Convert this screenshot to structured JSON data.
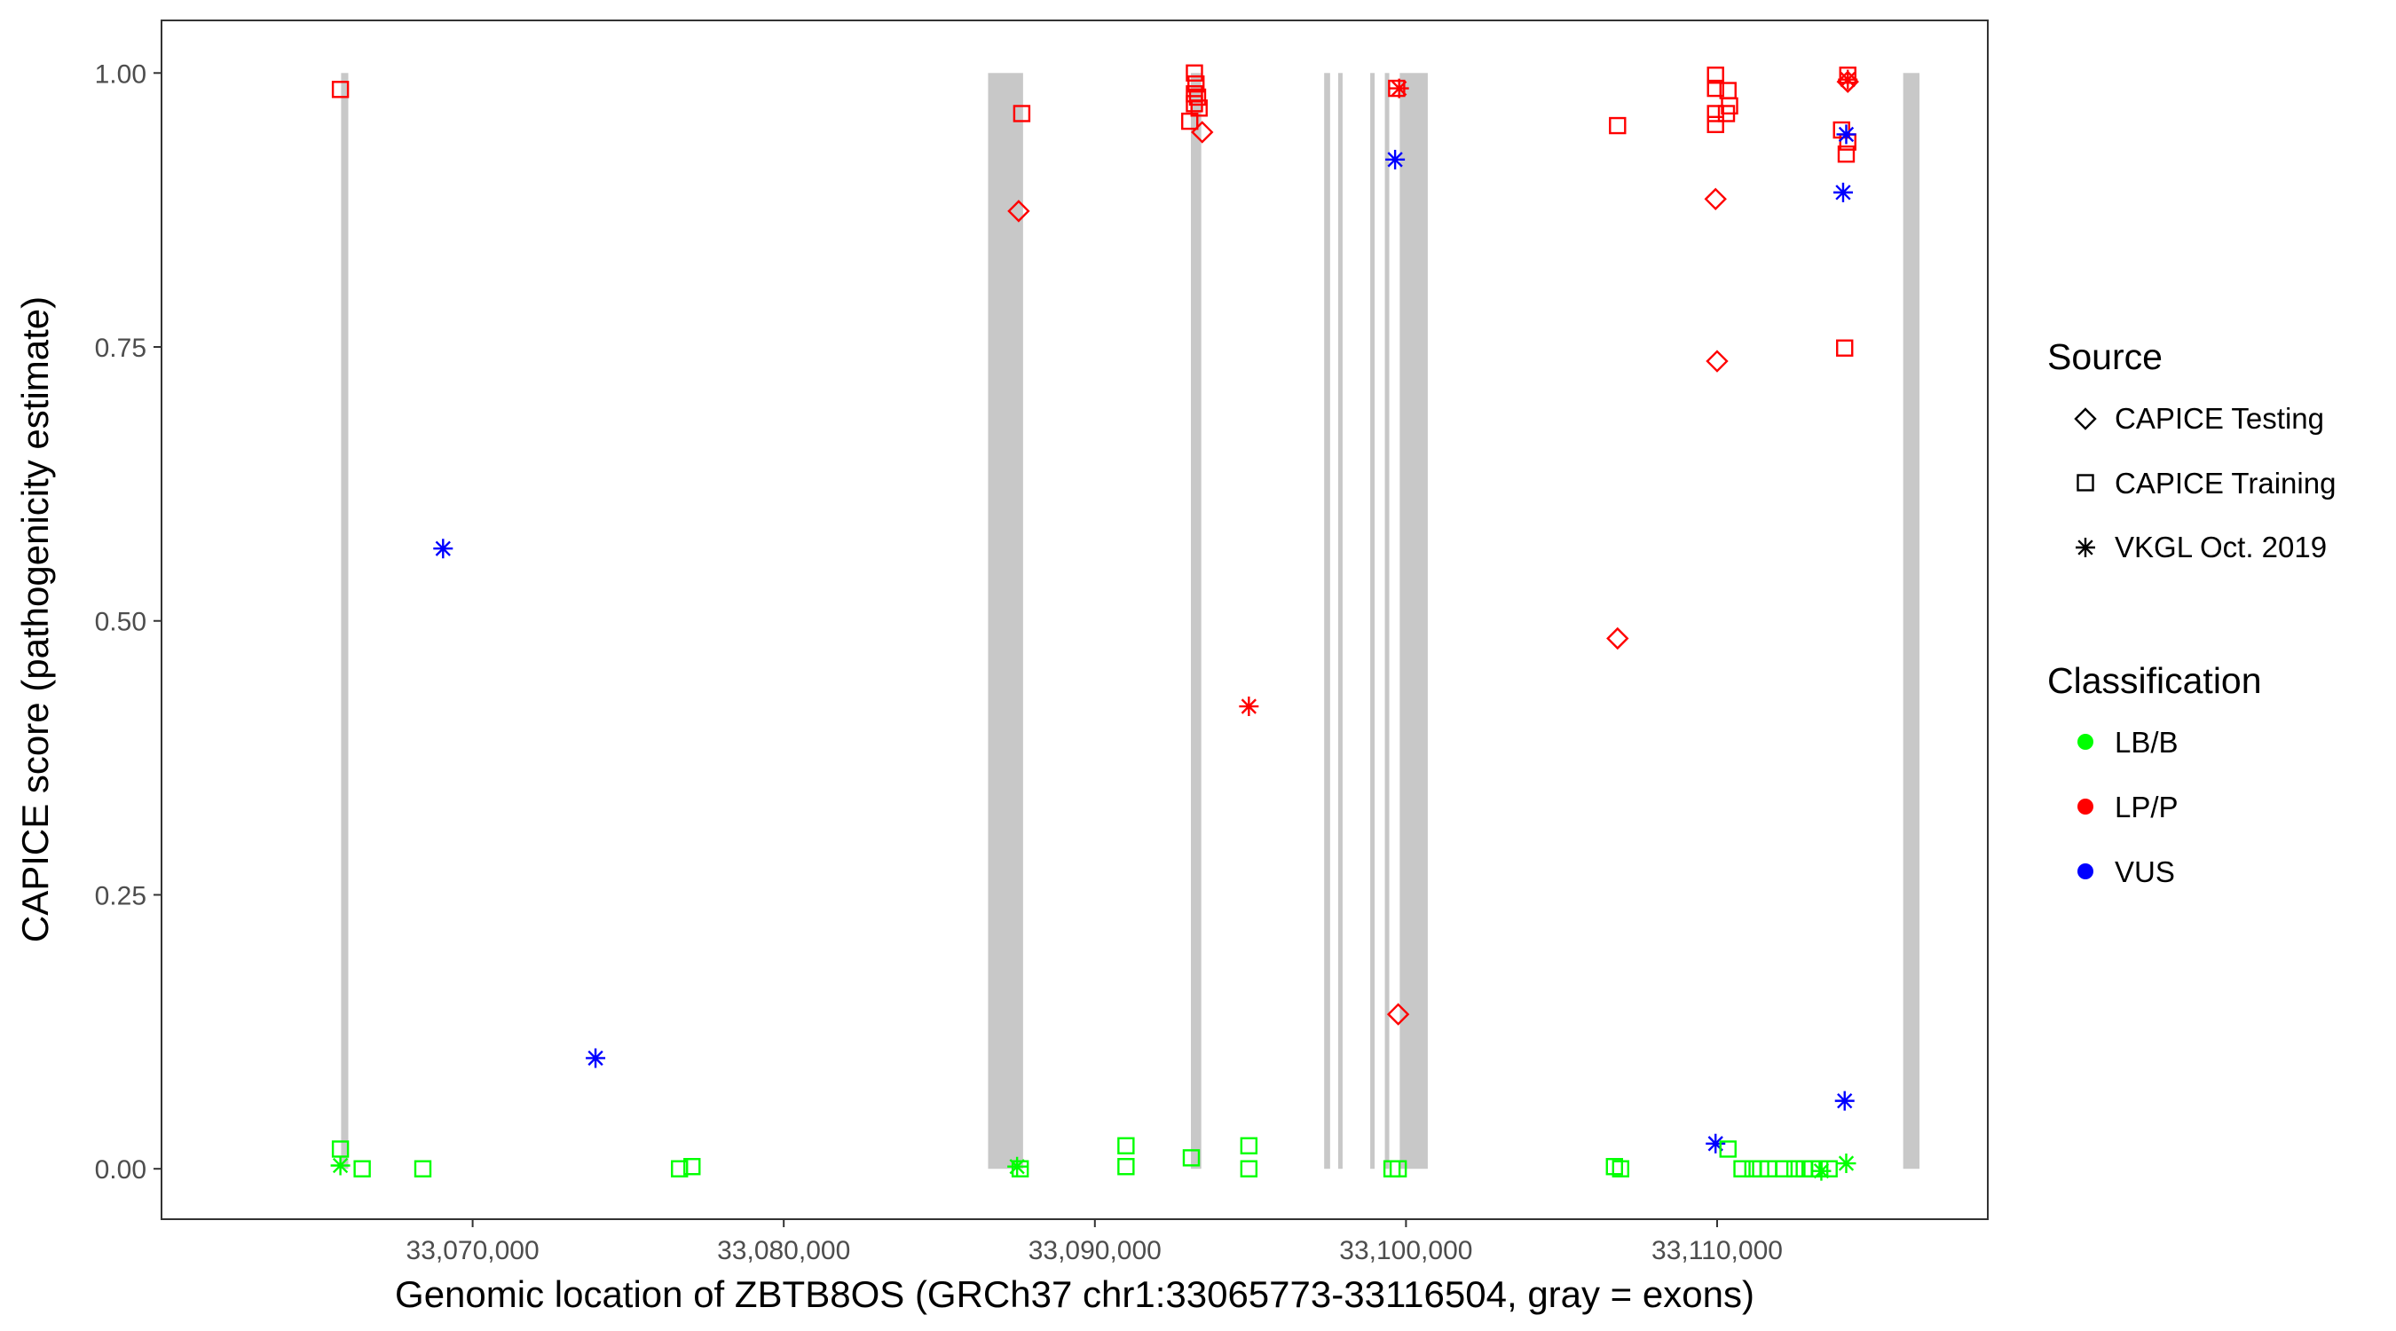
{
  "chart_data": {
    "type": "scatter",
    "xlabel": "Genomic location of ZBTB8OS (GRCh37 chr1:33065773-33116504, gray = exons)",
    "ylabel": "CAPICE score (pathogenicity estimate)",
    "xlim": [
      33060000,
      33118700
    ],
    "ylim": [
      -0.046,
      1.048
    ],
    "x_ticks": [
      33070000,
      33080000,
      33090000,
      33100000,
      33110000
    ],
    "x_tick_labels": [
      "33,070,000",
      "33,080,000",
      "33,090,000",
      "33,100,000",
      "33,110,000"
    ],
    "y_ticks": [
      0,
      0.25,
      0.5,
      0.75,
      1.0
    ],
    "y_tick_labels": [
      "0.00",
      "0.25",
      "0.50",
      "0.75",
      "1.00"
    ],
    "grid": false,
    "exons": [
      [
        33065773,
        33066004
      ],
      [
        33086568,
        33087692
      ],
      [
        33093087,
        33093420
      ],
      [
        33097370,
        33097560
      ],
      [
        33097820,
        33097950
      ],
      [
        33098850,
        33098920
      ],
      [
        33099320,
        33099430
      ],
      [
        33099800,
        33100700
      ],
      [
        33115980,
        33116504
      ]
    ],
    "legend": {
      "position": "right",
      "source_title": "Source",
      "source_entries": [
        {
          "label": "CAPICE Testing",
          "shape": "diamond"
        },
        {
          "label": "CAPICE Training",
          "shape": "square"
        },
        {
          "label": "VKGL Oct. 2019",
          "shape": "asterisk"
        }
      ],
      "classification_title": "Classification",
      "classification_entries": [
        {
          "label": "LB/B",
          "color": "#00ff00"
        },
        {
          "label": "LP/P",
          "color": "#ff0000"
        },
        {
          "label": "VUS",
          "color": "#0000ff"
        }
      ]
    },
    "colors": {
      "LB/B": "#00ff00",
      "LP/P": "#ff0000",
      "VUS": "#0000ff"
    },
    "points": [
      {
        "x": 33065750,
        "y": 0.985,
        "shape": "square",
        "cls": "LP/P"
      },
      {
        "x": 33065750,
        "y": 0.018,
        "shape": "square",
        "cls": "LB/B"
      },
      {
        "x": 33065750,
        "y": 0.003,
        "shape": "asterisk",
        "cls": "LB/B"
      },
      {
        "x": 33066450,
        "y": 0.0,
        "shape": "square",
        "cls": "LB/B"
      },
      {
        "x": 33068400,
        "y": 0.0,
        "shape": "square",
        "cls": "LB/B"
      },
      {
        "x": 33069050,
        "y": 0.566,
        "shape": "asterisk",
        "cls": "VUS"
      },
      {
        "x": 33073950,
        "y": 0.101,
        "shape": "asterisk",
        "cls": "VUS"
      },
      {
        "x": 33076650,
        "y": 0.0,
        "shape": "square",
        "cls": "LB/B"
      },
      {
        "x": 33077050,
        "y": 0.002,
        "shape": "square",
        "cls": "LB/B"
      },
      {
        "x": 33087550,
        "y": 0.874,
        "shape": "diamond",
        "cls": "LP/P"
      },
      {
        "x": 33087650,
        "y": 0.963,
        "shape": "square",
        "cls": "LP/P"
      },
      {
        "x": 33087500,
        "y": 0.002,
        "shape": "asterisk",
        "cls": "LB/B"
      },
      {
        "x": 33087600,
        "y": 0.0,
        "shape": "square",
        "cls": "LB/B"
      },
      {
        "x": 33091000,
        "y": 0.021,
        "shape": "square",
        "cls": "LB/B"
      },
      {
        "x": 33091000,
        "y": 0.002,
        "shape": "square",
        "cls": "LB/B"
      },
      {
        "x": 33093050,
        "y": 0.956,
        "shape": "square",
        "cls": "LP/P"
      },
      {
        "x": 33093200,
        "y": 1.0,
        "shape": "square",
        "cls": "LP/P"
      },
      {
        "x": 33093250,
        "y": 0.99,
        "shape": "square",
        "cls": "LP/P"
      },
      {
        "x": 33093200,
        "y": 0.981,
        "shape": "square",
        "cls": "LP/P"
      },
      {
        "x": 33093300,
        "y": 0.978,
        "shape": "square",
        "cls": "LP/P"
      },
      {
        "x": 33093200,
        "y": 0.972,
        "shape": "square",
        "cls": "LP/P"
      },
      {
        "x": 33093350,
        "y": 0.968,
        "shape": "square",
        "cls": "LP/P"
      },
      {
        "x": 33093450,
        "y": 0.946,
        "shape": "diamond",
        "cls": "LP/P"
      },
      {
        "x": 33093100,
        "y": 0.01,
        "shape": "square",
        "cls": "LB/B"
      },
      {
        "x": 33094950,
        "y": 0.422,
        "shape": "asterisk",
        "cls": "LP/P"
      },
      {
        "x": 33094950,
        "y": 0.021,
        "shape": "square",
        "cls": "LB/B"
      },
      {
        "x": 33094950,
        "y": 0.0,
        "shape": "square",
        "cls": "LB/B"
      },
      {
        "x": 33099700,
        "y": 0.986,
        "shape": "square",
        "cls": "LP/P"
      },
      {
        "x": 33099780,
        "y": 0.986,
        "shape": "asterisk",
        "cls": "LP/P"
      },
      {
        "x": 33099650,
        "y": 0.921,
        "shape": "asterisk",
        "cls": "VUS"
      },
      {
        "x": 33099750,
        "y": 0.141,
        "shape": "diamond",
        "cls": "LP/P"
      },
      {
        "x": 33099550,
        "y": 0.0,
        "shape": "square",
        "cls": "LB/B"
      },
      {
        "x": 33099750,
        "y": 0.0,
        "shape": "square",
        "cls": "LB/B"
      },
      {
        "x": 33106800,
        "y": 0.952,
        "shape": "square",
        "cls": "LP/P"
      },
      {
        "x": 33106800,
        "y": 0.484,
        "shape": "diamond",
        "cls": "LP/P"
      },
      {
        "x": 33106700,
        "y": 0.002,
        "shape": "square",
        "cls": "LB/B"
      },
      {
        "x": 33106900,
        "y": 0.0,
        "shape": "square",
        "cls": "LB/B"
      },
      {
        "x": 33109950,
        "y": 0.998,
        "shape": "square",
        "cls": "LP/P"
      },
      {
        "x": 33109950,
        "y": 0.986,
        "shape": "square",
        "cls": "LP/P"
      },
      {
        "x": 33109950,
        "y": 0.963,
        "shape": "square",
        "cls": "LP/P"
      },
      {
        "x": 33109950,
        "y": 0.953,
        "shape": "square",
        "cls": "LP/P"
      },
      {
        "x": 33110350,
        "y": 0.984,
        "shape": "square",
        "cls": "LP/P"
      },
      {
        "x": 33110400,
        "y": 0.97,
        "shape": "square",
        "cls": "LP/P"
      },
      {
        "x": 33110300,
        "y": 0.963,
        "shape": "square",
        "cls": "LP/P"
      },
      {
        "x": 33109950,
        "y": 0.885,
        "shape": "diamond",
        "cls": "LP/P"
      },
      {
        "x": 33110000,
        "y": 0.737,
        "shape": "diamond",
        "cls": "LP/P"
      },
      {
        "x": 33109950,
        "y": 0.023,
        "shape": "asterisk",
        "cls": "VUS"
      },
      {
        "x": 33110350,
        "y": 0.018,
        "shape": "square",
        "cls": "LB/B"
      },
      {
        "x": 33110800,
        "y": 0.0,
        "shape": "square",
        "cls": "LB/B"
      },
      {
        "x": 33111150,
        "y": 0.0,
        "shape": "square",
        "cls": "LB/B"
      },
      {
        "x": 33111400,
        "y": 0.0,
        "shape": "square",
        "cls": "LB/B"
      },
      {
        "x": 33111650,
        "y": 0.0,
        "shape": "square",
        "cls": "LB/B"
      },
      {
        "x": 33112150,
        "y": 0.0,
        "shape": "square",
        "cls": "LB/B"
      },
      {
        "x": 33112500,
        "y": 0.0,
        "shape": "square",
        "cls": "LB/B"
      },
      {
        "x": 33112800,
        "y": 0.0,
        "shape": "square",
        "cls": "LB/B"
      },
      {
        "x": 33113050,
        "y": 0.0,
        "shape": "square",
        "cls": "LB/B"
      },
      {
        "x": 33113300,
        "y": 0.0,
        "shape": "square",
        "cls": "LB/B"
      },
      {
        "x": 33113600,
        "y": 0.0,
        "shape": "square",
        "cls": "LB/B"
      },
      {
        "x": 33113350,
        "y": -0.002,
        "shape": "asterisk",
        "cls": "LB/B"
      },
      {
        "x": 33114150,
        "y": 0.005,
        "shape": "asterisk",
        "cls": "LB/B"
      },
      {
        "x": 33114200,
        "y": 0.998,
        "shape": "square",
        "cls": "LP/P"
      },
      {
        "x": 33114200,
        "y": 0.992,
        "shape": "diamond",
        "cls": "LP/P"
      },
      {
        "x": 33114200,
        "y": 0.994,
        "shape": "asterisk",
        "cls": "LP/P"
      },
      {
        "x": 33114000,
        "y": 0.948,
        "shape": "square",
        "cls": "LP/P"
      },
      {
        "x": 33114200,
        "y": 0.937,
        "shape": "square",
        "cls": "LP/P"
      },
      {
        "x": 33114150,
        "y": 0.926,
        "shape": "square",
        "cls": "LP/P"
      },
      {
        "x": 33114100,
        "y": 0.749,
        "shape": "square",
        "cls": "LP/P"
      },
      {
        "x": 33114150,
        "y": 0.944,
        "shape": "asterisk",
        "cls": "VUS"
      },
      {
        "x": 33114050,
        "y": 0.891,
        "shape": "asterisk",
        "cls": "VUS"
      },
      {
        "x": 33114100,
        "y": 0.062,
        "shape": "asterisk",
        "cls": "VUS"
      }
    ]
  }
}
